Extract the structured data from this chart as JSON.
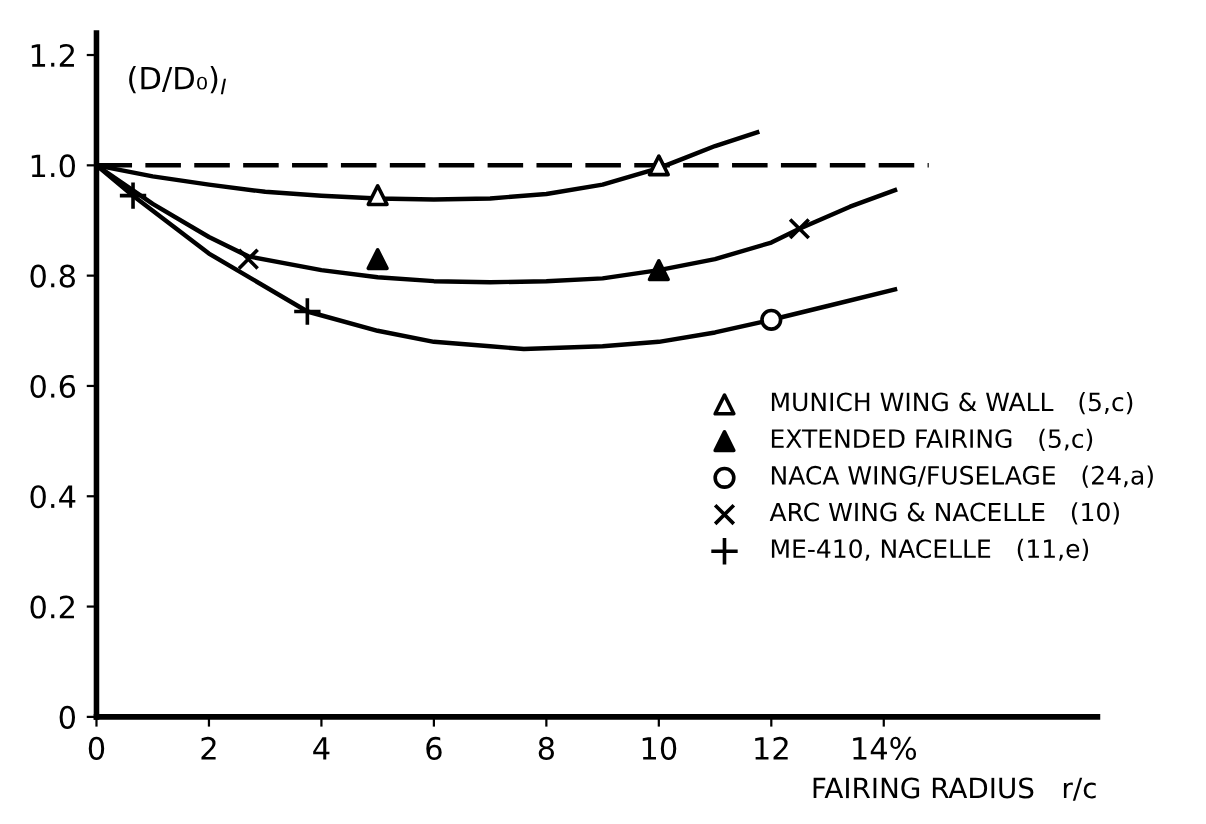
{
  "chart_data": {
    "type": "line",
    "ylabel": "(D/D₀)$_{I}$",
    "xlabel": "FAIRING RADIUS   r/c",
    "xlim": [
      0,
      17.8
    ],
    "ylim": [
      0,
      1.24
    ],
    "xticks": [
      0,
      2,
      4,
      6,
      8,
      10,
      12,
      {
        "value": 14,
        "label": "14%"
      }
    ],
    "yticks": [
      0,
      0.2,
      0.4,
      0.6,
      0.8,
      {
        "value": 1,
        "label": "1.0"
      },
      1.2
    ],
    "grid": false,
    "legend": "right",
    "series": [
      {
        "color": "#000000",
        "line_style": "dashed",
        "x": [
          0,
          14.8
        ],
        "values": [
          1.0,
          1.0
        ]
      },
      {
        "color": "#000000",
        "x": [
          0,
          1,
          2,
          3,
          4,
          5,
          6,
          7,
          8,
          9,
          10,
          10.5,
          11,
          11.75
        ],
        "values": [
          1.0,
          0.98,
          0.965,
          0.952,
          0.945,
          0.94,
          0.938,
          0.94,
          0.948,
          0.965,
          0.995,
          1.015,
          1.035,
          1.06
        ]
      },
      {
        "color": "#000000",
        "x": [
          0,
          1,
          2,
          2.7,
          4,
          5,
          6,
          7,
          8,
          9,
          10,
          11,
          12,
          12.5,
          13.4,
          14.2
        ],
        "values": [
          1.0,
          0.93,
          0.87,
          0.835,
          0.81,
          0.797,
          0.79,
          0.788,
          0.79,
          0.795,
          0.81,
          0.83,
          0.86,
          0.885,
          0.925,
          0.955
        ]
      },
      {
        "color": "#000000",
        "x": [
          0,
          0.65,
          2,
          3.75,
          5,
          6,
          7,
          7.6,
          9,
          10,
          11,
          12,
          13,
          14.2
        ],
        "values": [
          1.0,
          0.945,
          0.84,
          0.735,
          0.7,
          0.68,
          0.672,
          0.667,
          0.672,
          0.68,
          0.697,
          0.72,
          0.745,
          0.775
        ]
      },
      {
        "type": "scatter",
        "name": "MUNICH WING & WALL   (5,c)",
        "color": "#ffffff",
        "marker": "triangle",
        "x": [
          5,
          10
        ],
        "values": [
          0.946,
          1.0
        ]
      },
      {
        "type": "scatter",
        "name": "EXTENDED FAIRING   (5,c)",
        "color": "#000000",
        "marker": "triangle",
        "x": [
          5,
          10
        ],
        "values": [
          0.83,
          0.81
        ]
      },
      {
        "type": "scatter",
        "name": "NACA WING/FUSELAGE   (24,a)",
        "color": "#ffffff",
        "marker": "circle",
        "x": [
          12
        ],
        "values": [
          0.72
        ]
      },
      {
        "type": "scatter",
        "name": "ARC WING & NACELLE   (10)",
        "color": "#000000",
        "marker": "cross",
        "x": [
          2.7,
          12.5
        ],
        "values": [
          0.83,
          0.885
        ]
      },
      {
        "type": "scatter",
        "name": "ME-410, NACELLE   (11,e)",
        "color": "#000000",
        "marker": "plus",
        "x": [
          0.65,
          3.75
        ],
        "values": [
          0.945,
          0.735
        ]
      }
    ]
  }
}
